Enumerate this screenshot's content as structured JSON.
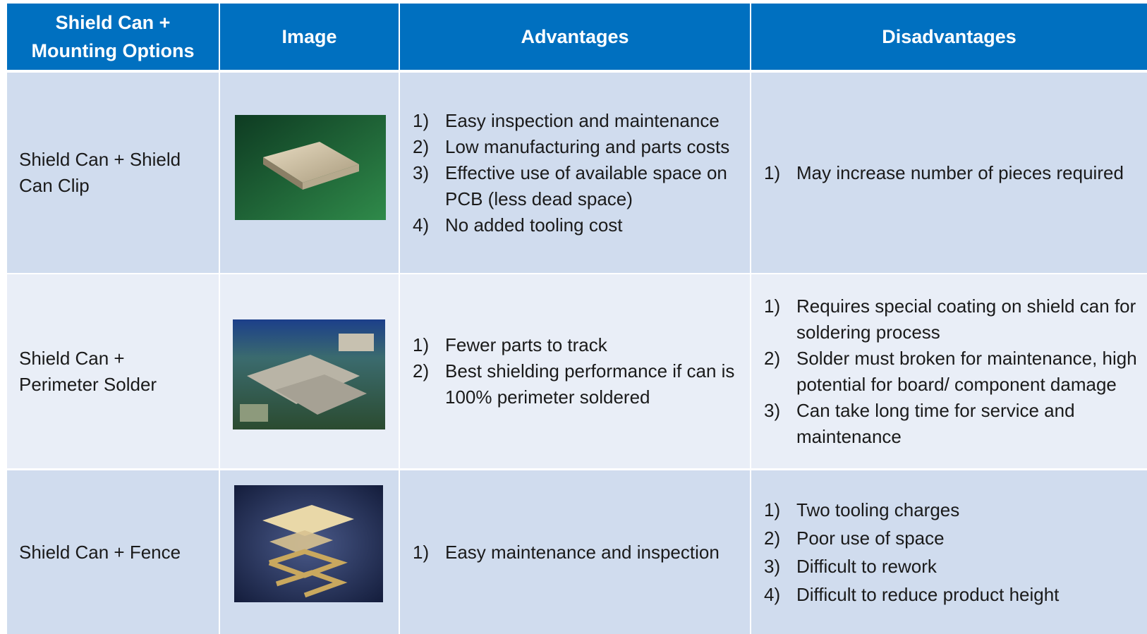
{
  "table": {
    "headers": [
      "Shield Can +\nMounting Options",
      "Image",
      "Advantages",
      "Disadvantages"
    ],
    "rows": [
      {
        "option": "Shield Can + Shield Can Clip",
        "advantages": [
          {
            "marker": "1)",
            "text": "Easy inspection and maintenance"
          },
          {
            "marker": "2)",
            "text": "Low manufacturing and parts costs"
          },
          {
            "marker": "3)",
            "text": "Effective use of available space on PCB (less dead space)"
          },
          {
            "marker": "4)",
            "text": "No added tooling cost"
          }
        ],
        "disadvantages": [
          {
            "marker": "1)",
            "text": "May increase number of pieces required"
          }
        ]
      },
      {
        "option": "Shield Can + Perimeter Solder",
        "advantages": [
          {
            "marker": "1)",
            "text": "Fewer parts to track"
          },
          {
            "marker": "2)",
            "text": "Best shielding performance if can is 100% perimeter soldered"
          }
        ],
        "disadvantages": [
          {
            "marker": "1)",
            "text": "Requires special coating on shield can for soldering process"
          },
          {
            "marker": "2)",
            "text": "Solder must broken for maintenance, high potential for board/ component damage"
          },
          {
            "marker": "3)",
            "text": "Can take long time for service and maintenance"
          }
        ]
      },
      {
        "option": "Shield Can + Fence",
        "advantages": [
          {
            "marker": "1)",
            "text": "Easy maintenance and inspection"
          }
        ],
        "disadvantages": [
          {
            "marker": "1)",
            "text": "Two tooling charges"
          },
          {
            "marker": "2)",
            "text": "Poor use of space"
          },
          {
            "marker": "3)",
            "text": "Difficult to rework"
          },
          {
            "marker": "4)",
            "text": "Difficult to reduce product height"
          }
        ]
      }
    ]
  }
}
